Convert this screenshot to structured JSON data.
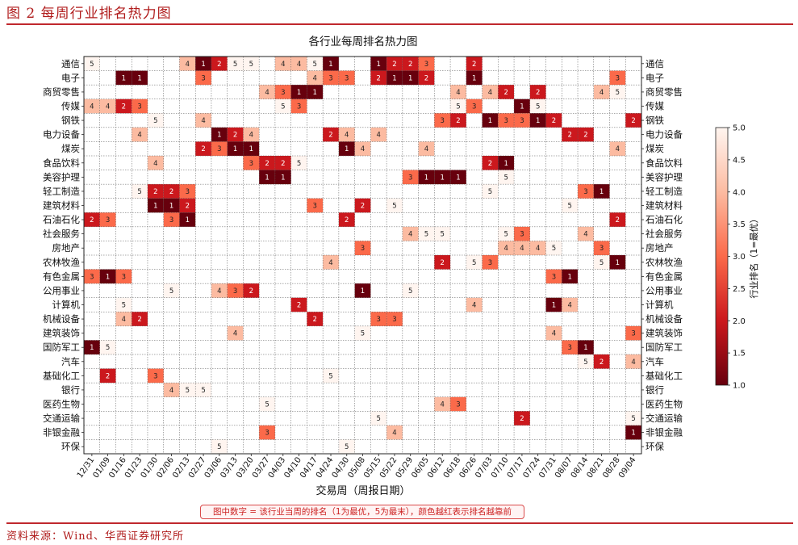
{
  "header": {
    "figure_title": "图 2 每周行业排名热力图"
  },
  "footer": {
    "source": "资料来源：Wind、华西证券研究所"
  },
  "chart_data": {
    "type": "heatmap",
    "title": "各行业每周排名热力图",
    "xlabel": "交易周（周报日期）",
    "colorbar_label": "行业排名（1=最优）",
    "colorbar_ticks": [
      "5.0",
      "4.5",
      "4.0",
      "3.5",
      "3.0",
      "2.5",
      "2.0",
      "1.5",
      "1.0"
    ],
    "vmin": 1,
    "vmax": 5,
    "note": "图中数字 = 该行业当周的排名（1为最优，5为最末），颜色越红表示排名越靠前",
    "weeks": [
      "12/31",
      "01/09",
      "01/16",
      "01/23",
      "01/30",
      "02/06",
      "02/13",
      "02/27",
      "03/06",
      "03/13",
      "03/20",
      "03/27",
      "04/03",
      "04/10",
      "04/17",
      "04/24",
      "04/30",
      "05/08",
      "05/15",
      "05/22",
      "05/29",
      "06/05",
      "06/12",
      "06/18",
      "06/26",
      "07/03",
      "07/10",
      "07/17",
      "07/24",
      "07/31",
      "08/07",
      "08/14",
      "08/21",
      "08/28",
      "09/04"
    ],
    "industries": [
      "通信",
      "电子",
      "商贸零售",
      "传媒",
      "钢铁",
      "电力设备",
      "煤炭",
      "食品饮料",
      "美容护理",
      "轻工制造",
      "建筑材料",
      "石油石化",
      "社会服务",
      "房地产",
      "农林牧渔",
      "有色金属",
      "公用事业",
      "计算机",
      "机械设备",
      "建筑装饰",
      "国防军工",
      "汽车",
      "基础化工",
      "银行",
      "医药生物",
      "交通运输",
      "非银金融",
      "环保"
    ],
    "ranks": [
      [
        5,
        null,
        null,
        null,
        null,
        null,
        4,
        1,
        2,
        5,
        5,
        null,
        4,
        4,
        5,
        1,
        null,
        null,
        1,
        2,
        2,
        3,
        null,
        null,
        2,
        null,
        null,
        null,
        null,
        null,
        null,
        null,
        null,
        null,
        null
      ],
      [
        null,
        null,
        1,
        1,
        null,
        null,
        null,
        3,
        null,
        null,
        null,
        null,
        null,
        null,
        4,
        3,
        3,
        null,
        2,
        1,
        1,
        2,
        null,
        null,
        1,
        null,
        null,
        null,
        null,
        null,
        null,
        null,
        null,
        3,
        null
      ],
      [
        null,
        null,
        null,
        null,
        null,
        null,
        null,
        null,
        null,
        null,
        null,
        4,
        3,
        1,
        1,
        null,
        null,
        null,
        null,
        null,
        null,
        null,
        null,
        4,
        null,
        4,
        2,
        null,
        2,
        null,
        null,
        null,
        4,
        5,
        null
      ],
      [
        4,
        4,
        2,
        3,
        null,
        null,
        null,
        null,
        null,
        null,
        null,
        null,
        5,
        3,
        null,
        null,
        null,
        null,
        null,
        null,
        null,
        null,
        null,
        5,
        3,
        null,
        null,
        1,
        5,
        null,
        null,
        null,
        null,
        null,
        null
      ],
      [
        null,
        null,
        null,
        null,
        5,
        null,
        null,
        4,
        null,
        null,
        null,
        null,
        null,
        null,
        null,
        null,
        null,
        null,
        null,
        null,
        null,
        null,
        3,
        2,
        null,
        1,
        3,
        3,
        1,
        2,
        null,
        null,
        null,
        null,
        2
      ],
      [
        null,
        null,
        null,
        4,
        null,
        null,
        null,
        null,
        1,
        2,
        4,
        null,
        null,
        null,
        null,
        2,
        4,
        null,
        4,
        null,
        null,
        null,
        null,
        null,
        null,
        null,
        null,
        null,
        null,
        null,
        2,
        2,
        null,
        null,
        null
      ],
      [
        null,
        null,
        null,
        null,
        null,
        null,
        null,
        2,
        3,
        1,
        1,
        null,
        null,
        null,
        null,
        null,
        1,
        4,
        null,
        null,
        null,
        4,
        null,
        null,
        null,
        null,
        null,
        null,
        null,
        null,
        null,
        null,
        null,
        4,
        null
      ],
      [
        null,
        null,
        null,
        null,
        4,
        null,
        null,
        null,
        null,
        null,
        3,
        2,
        2,
        5,
        null,
        null,
        null,
        null,
        null,
        null,
        null,
        null,
        null,
        null,
        null,
        2,
        1,
        null,
        null,
        null,
        null,
        null,
        null,
        null,
        null
      ],
      [
        null,
        null,
        null,
        null,
        null,
        null,
        null,
        null,
        null,
        null,
        null,
        1,
        1,
        null,
        null,
        null,
        null,
        null,
        null,
        null,
        3,
        1,
        1,
        1,
        null,
        null,
        5,
        null,
        null,
        null,
        null,
        null,
        null,
        null,
        null
      ],
      [
        null,
        null,
        null,
        5,
        2,
        2,
        3,
        null,
        null,
        null,
        null,
        null,
        null,
        null,
        null,
        null,
        null,
        null,
        null,
        null,
        null,
        null,
        null,
        null,
        null,
        5,
        null,
        null,
        null,
        null,
        null,
        3,
        1,
        null,
        null
      ],
      [
        null,
        null,
        null,
        null,
        1,
        1,
        2,
        null,
        null,
        null,
        null,
        null,
        null,
        null,
        3,
        null,
        null,
        2,
        null,
        5,
        null,
        null,
        null,
        null,
        null,
        null,
        null,
        null,
        null,
        null,
        5,
        null,
        null,
        null,
        null
      ],
      [
        2,
        3,
        null,
        null,
        null,
        3,
        1,
        null,
        null,
        null,
        null,
        null,
        null,
        null,
        null,
        null,
        2,
        null,
        null,
        null,
        null,
        null,
        null,
        null,
        null,
        null,
        null,
        null,
        null,
        null,
        null,
        null,
        null,
        2,
        null
      ],
      [
        null,
        null,
        null,
        null,
        null,
        null,
        null,
        null,
        null,
        null,
        null,
        null,
        null,
        null,
        null,
        null,
        null,
        null,
        null,
        null,
        4,
        5,
        5,
        null,
        null,
        null,
        5,
        3,
        null,
        null,
        null,
        4,
        null,
        null,
        null
      ],
      [
        null,
        null,
        null,
        null,
        null,
        null,
        null,
        null,
        null,
        null,
        null,
        null,
        null,
        null,
        null,
        null,
        null,
        3,
        null,
        null,
        null,
        null,
        null,
        null,
        null,
        null,
        4,
        4,
        4,
        5,
        null,
        null,
        3,
        null,
        null
      ],
      [
        null,
        null,
        null,
        null,
        null,
        null,
        null,
        null,
        null,
        null,
        null,
        null,
        null,
        null,
        null,
        4,
        null,
        null,
        null,
        null,
        null,
        null,
        2,
        null,
        5,
        3,
        null,
        null,
        null,
        null,
        null,
        null,
        5,
        1,
        null
      ],
      [
        3,
        1,
        3,
        null,
        null,
        null,
        null,
        null,
        null,
        null,
        null,
        null,
        null,
        null,
        null,
        null,
        null,
        null,
        null,
        null,
        null,
        null,
        null,
        null,
        null,
        null,
        null,
        null,
        null,
        3,
        1,
        null,
        null,
        null,
        null
      ],
      [
        null,
        null,
        null,
        null,
        null,
        5,
        null,
        null,
        4,
        3,
        2,
        null,
        null,
        null,
        null,
        null,
        null,
        1,
        null,
        null,
        5,
        null,
        null,
        null,
        null,
        null,
        null,
        null,
        null,
        null,
        null,
        null,
        null,
        null,
        null
      ],
      [
        null,
        null,
        5,
        null,
        null,
        null,
        null,
        null,
        null,
        null,
        null,
        null,
        null,
        2,
        null,
        null,
        null,
        null,
        null,
        null,
        null,
        null,
        null,
        null,
        4,
        null,
        null,
        null,
        null,
        1,
        4,
        null,
        null,
        null,
        null
      ],
      [
        null,
        null,
        4,
        2,
        null,
        null,
        null,
        null,
        null,
        null,
        null,
        null,
        null,
        null,
        2,
        null,
        null,
        null,
        3,
        3,
        null,
        null,
        null,
        null,
        null,
        null,
        null,
        null,
        null,
        null,
        null,
        null,
        null,
        null,
        null
      ],
      [
        null,
        null,
        null,
        null,
        null,
        null,
        null,
        null,
        null,
        4,
        null,
        null,
        null,
        null,
        null,
        null,
        null,
        5,
        null,
        null,
        null,
        null,
        null,
        null,
        null,
        null,
        null,
        null,
        null,
        4,
        null,
        null,
        null,
        null,
        3
      ],
      [
        1,
        5,
        null,
        null,
        null,
        null,
        null,
        null,
        null,
        null,
        null,
        null,
        null,
        null,
        null,
        null,
        null,
        null,
        null,
        null,
        null,
        null,
        null,
        null,
        null,
        null,
        null,
        null,
        null,
        null,
        3,
        1,
        null,
        null,
        null
      ],
      [
        null,
        null,
        null,
        null,
        null,
        null,
        null,
        null,
        null,
        null,
        null,
        null,
        null,
        null,
        null,
        null,
        null,
        null,
        null,
        null,
        null,
        null,
        null,
        null,
        null,
        null,
        null,
        null,
        null,
        null,
        null,
        5,
        2,
        null,
        4
      ],
      [
        null,
        2,
        null,
        null,
        3,
        null,
        null,
        null,
        null,
        null,
        null,
        null,
        null,
        null,
        null,
        5,
        null,
        null,
        null,
        null,
        null,
        null,
        null,
        null,
        null,
        null,
        null,
        null,
        null,
        null,
        null,
        null,
        null,
        null,
        null
      ],
      [
        null,
        null,
        null,
        null,
        null,
        4,
        5,
        5,
        null,
        null,
        null,
        null,
        null,
        null,
        null,
        null,
        null,
        null,
        null,
        null,
        null,
        null,
        null,
        null,
        null,
        null,
        null,
        null,
        null,
        null,
        null,
        null,
        null,
        null,
        null
      ],
      [
        null,
        null,
        null,
        null,
        null,
        null,
        null,
        null,
        null,
        null,
        null,
        5,
        null,
        null,
        null,
        null,
        null,
        null,
        null,
        null,
        null,
        null,
        4,
        3,
        null,
        null,
        null,
        null,
        null,
        null,
        null,
        null,
        null,
        null,
        null
      ],
      [
        null,
        null,
        null,
        null,
        null,
        null,
        null,
        null,
        null,
        null,
        null,
        null,
        null,
        null,
        null,
        null,
        null,
        null,
        5,
        null,
        null,
        null,
        null,
        null,
        null,
        null,
        null,
        2,
        null,
        null,
        null,
        null,
        null,
        null,
        5
      ],
      [
        null,
        null,
        null,
        null,
        null,
        null,
        null,
        null,
        null,
        null,
        null,
        3,
        null,
        null,
        null,
        null,
        null,
        null,
        null,
        4,
        null,
        null,
        null,
        null,
        null,
        null,
        null,
        null,
        null,
        null,
        null,
        null,
        null,
        null,
        1
      ],
      [
        null,
        null,
        null,
        null,
        null,
        null,
        null,
        null,
        5,
        null,
        null,
        null,
        null,
        null,
        null,
        null,
        5,
        null,
        null,
        null,
        null,
        null,
        null,
        null,
        null,
        null,
        null,
        null,
        null,
        null,
        null,
        null,
        null,
        null,
        null
      ]
    ]
  }
}
